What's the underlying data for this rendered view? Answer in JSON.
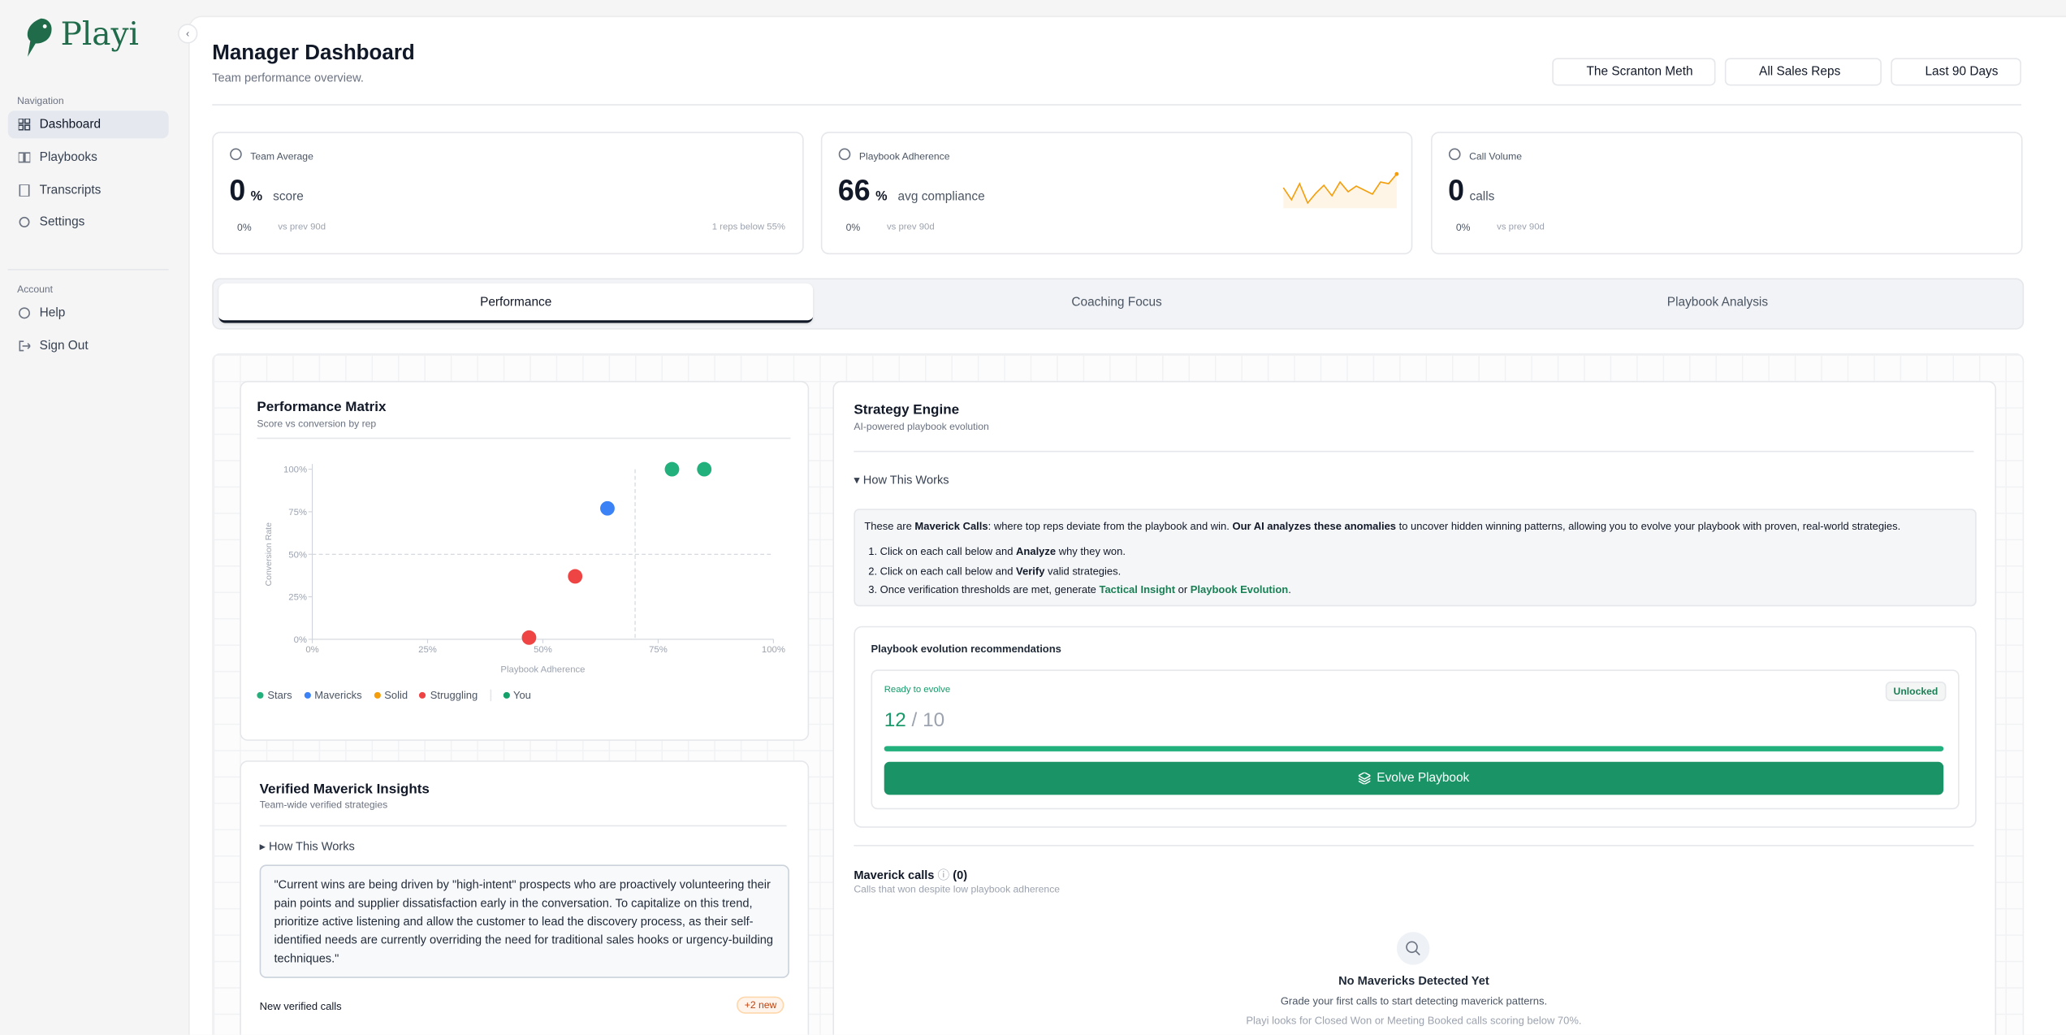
{
  "sidebar": {
    "brand": "Playi",
    "nav_heading": "Navigation",
    "nav": [
      "Dashboard",
      "Playbooks",
      "Transcripts",
      "Settings"
    ],
    "account_heading": "Account",
    "account": [
      "Help",
      "Sign Out"
    ]
  },
  "header": {
    "title": "Manager Dashboard",
    "subtitle": "Team performance overview.",
    "filters": [
      "The Scranton Meth",
      "All Sales Reps",
      "Last 90 Days"
    ]
  },
  "stats": [
    {
      "label": "Team Average",
      "value": 0,
      "unit": "%",
      "suffix": "score",
      "delta": "0%",
      "compare": "vs prev 90d",
      "note": "1 reps below 55%"
    },
    {
      "label": "Playbook Adherence",
      "value": 66,
      "unit": "%",
      "suffix": "avg compliance",
      "delta": "0%",
      "compare": "vs prev 90d",
      "sparkline": {
        "color": "#f59e0b",
        "values": [
          55,
          40,
          60,
          36,
          48,
          58,
          45,
          62,
          50,
          57,
          52,
          47,
          62,
          60,
          72
        ]
      }
    },
    {
      "label": "Call Volume",
      "value": 0,
      "suffix": "calls",
      "delta": "0%",
      "compare": "vs prev 90d"
    }
  ],
  "tabs": [
    "Performance",
    "Coaching Focus",
    "Playbook Analysis"
  ],
  "chart_data": {
    "type": "scatter",
    "title": "Performance Matrix",
    "subtitle": "Score vs conversion by rep",
    "xlabel": "Playbook Adherence",
    "ylabel": "Conversion Rate",
    "xlim": [
      0,
      100
    ],
    "ylim": [
      0,
      100
    ],
    "xticks": [
      {
        "value": 0,
        "label": "0%"
      },
      {
        "value": 25,
        "label": "25%"
      },
      {
        "value": 50,
        "label": "50%"
      },
      {
        "value": 75,
        "label": "75%"
      },
      {
        "value": 100,
        "label": "100%"
      }
    ],
    "yticks": [
      {
        "value": 0,
        "label": "0%"
      },
      {
        "value": 25,
        "label": "25%"
      },
      {
        "value": 50,
        "label": "50%"
      },
      {
        "value": 75,
        "label": "75%"
      },
      {
        "value": 100,
        "label": "100%"
      }
    ],
    "thresholds": {
      "x": 70,
      "y": 50
    },
    "series": [
      {
        "name": "Stars",
        "color": "#22b07d",
        "x": [
          78,
          85
        ],
        "values": [
          100,
          100
        ]
      },
      {
        "name": "Mavericks",
        "color": "#3b82f6",
        "x": [
          64
        ],
        "values": [
          77
        ]
      },
      {
        "name": "Solid",
        "color": "#f59e0b",
        "x": [],
        "values": []
      },
      {
        "name": "Struggling",
        "color": "#ef4444",
        "x": [
          57,
          47
        ],
        "values": [
          37,
          1
        ]
      }
    ],
    "you": {
      "name": "You",
      "color": "#16a06a"
    }
  },
  "insights": {
    "title": "Verified Maverick Insights",
    "subtitle": "Team-wide verified strategies",
    "how": "How This Works",
    "quote": "\"Current wins are being driven by \"high-intent\" prospects who are proactively volunteering their pain points and supplier dissatisfaction early in the conversation. To capitalize on this trend, prioritize active listening and allow the customer to lead the discovery process, as their self-identified needs are currently overriding the need for traditional sales hooks or urgency-building techniques.\"",
    "new_label": "New verified calls",
    "new_badge": "+2 new"
  },
  "strategy": {
    "title": "Strategy Engine",
    "subtitle": "AI-powered playbook evolution",
    "how": "How This Works",
    "intro": [
      {
        "t": "These are "
      },
      {
        "t": "Maverick Calls",
        "s": "b"
      },
      {
        "t": ": where top reps deviate from the playbook and win. "
      },
      {
        "t": "Our AI analyzes these anomalies",
        "s": "b"
      },
      {
        "t": " to uncover hidden winning patterns, allowing you to evolve your playbook with proven, real-world strategies."
      }
    ],
    "steps": [
      [
        {
          "t": "1. Click on each call below and "
        },
        {
          "t": "Analyze",
          "s": "b"
        },
        {
          "t": " why they won."
        }
      ],
      [
        {
          "t": "2. Click on each call below and "
        },
        {
          "t": "Verify",
          "s": "b"
        },
        {
          "t": " valid strategies."
        }
      ],
      [
        {
          "t": "3. Once verification thresholds are met, generate "
        },
        {
          "t": "Tactical Insight",
          "s": "g"
        },
        {
          "t": " or "
        },
        {
          "t": "Playbook Evolution",
          "s": "g"
        },
        {
          "t": "."
        }
      ]
    ],
    "rec_title": "Playbook evolution recommendations",
    "ready": "Ready to evolve",
    "badge": "Unlocked",
    "current": 12,
    "sep": "/",
    "target": 10,
    "button": "Evolve Playbook",
    "mav_title": "Maverick calls",
    "mav_count": "(0)",
    "mav_subtitle": "Calls that won despite low playbook adherence",
    "empty_title": "No Mavericks Detected Yet",
    "empty_text": "Grade your first calls to start detecting maverick patterns.",
    "empty_note": "Playi looks for Closed Won or Meeting Booked calls scoring below 70%."
  }
}
